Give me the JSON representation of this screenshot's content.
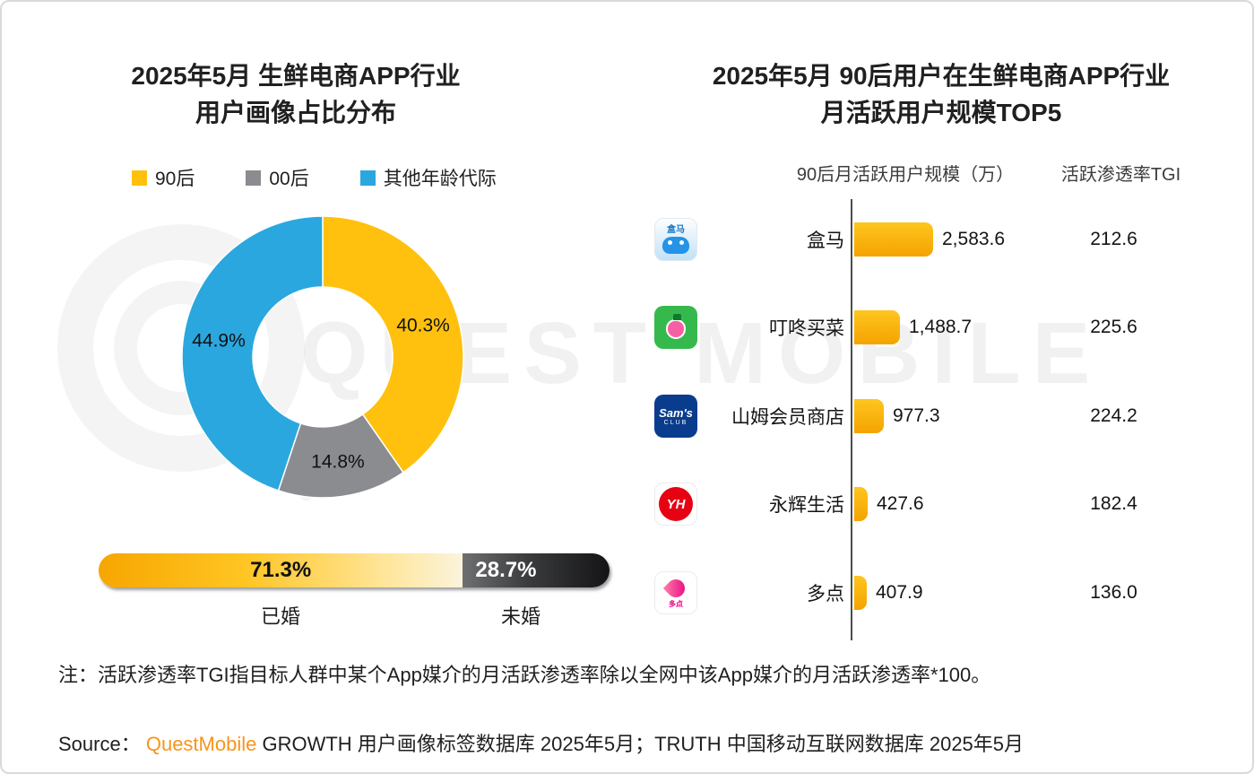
{
  "watermark": {
    "text": "QUEST MOBILE"
  },
  "note": "注：活跃渗透率TGI指目标人群中某个App媒介的月活跃渗透率除以全网中该App媒介的月活跃渗透率*100。",
  "source": {
    "label": "Source：",
    "brand": "QuestMobile",
    "text": " GROWTH 用户画像标签数据库 2025年5月；TRUTH 中国移动互联网数据库 2025年5月"
  },
  "chart_data": [
    {
      "type": "pie",
      "donut": true,
      "title": "2025年5月 生鲜电商APP行业 用户画像占比分布",
      "title_line1": "2025年5月 生鲜电商APP行业",
      "title_line2": "用户画像占比分布",
      "legend_position": "top",
      "slices": [
        {
          "label": "90后",
          "value": 40.3,
          "display": "40.3%",
          "color": "#FFC10E"
        },
        {
          "label": "00后",
          "value": 14.8,
          "display": "14.8%",
          "color": "#8A8C8F"
        },
        {
          "label": "其他年龄代际",
          "value": 44.9,
          "display": "44.9%",
          "color": "#2AA7DF"
        }
      ]
    },
    {
      "type": "bar",
      "variant": "stacked-pill",
      "categories": [
        "已婚",
        "未婚"
      ],
      "values": [
        71.3,
        28.7
      ],
      "labels": [
        "71.3%",
        "28.7%"
      ]
    },
    {
      "type": "bar",
      "variant": "horizontal",
      "title": "2025年5月 90后用户在生鲜电商APP行业 月活跃用户规模TOP5",
      "title_line1": "2025年5月 90后用户在生鲜电商APP行业",
      "title_line2": "月活跃用户规模TOP5",
      "value_header": "90后月活跃用户规模（万）",
      "tgi_header": "活跃渗透率TGI",
      "xlim": [
        0,
        2600
      ],
      "rows": [
        {
          "app": "盒马",
          "icon": "hema-app-icon",
          "icon_text": "盒马",
          "value": 2583.6,
          "value_display": "2,583.6",
          "tgi": 212.6,
          "tgi_display": "212.6"
        },
        {
          "app": "叮咚买菜",
          "icon": "dingdong-app-icon",
          "icon_text": "",
          "value": 1488.7,
          "value_display": "1,488.7",
          "tgi": 225.6,
          "tgi_display": "225.6"
        },
        {
          "app": "山姆会员商店",
          "icon": "sams-club-app-icon",
          "icon_text": "Sam's",
          "icon_subtext": "CLUB",
          "value": 977.3,
          "value_display": "977.3",
          "tgi": 224.2,
          "tgi_display": "224.2"
        },
        {
          "app": "永辉生活",
          "icon": "yonghui-app-icon",
          "icon_text": "YH",
          "value": 427.6,
          "value_display": "427.6",
          "tgi": 182.4,
          "tgi_display": "182.4"
        },
        {
          "app": "多点",
          "icon": "duodian-app-icon",
          "icon_text": "多点",
          "value": 407.9,
          "value_display": "407.9",
          "tgi": 136.0,
          "tgi_display": "136.0"
        }
      ]
    }
  ]
}
